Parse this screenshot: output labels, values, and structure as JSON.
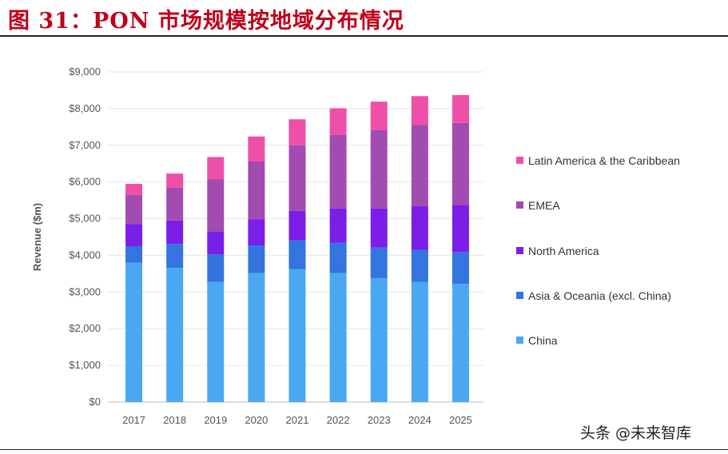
{
  "title": "图 31：PON 市场规模按地域分布情况",
  "watermark": "头条 @未来智库",
  "chart_data": {
    "type": "bar",
    "stacked": true,
    "title": "",
    "xlabel": "",
    "ylabel": "Revenue ($m)",
    "ylim": [
      0,
      9000
    ],
    "yticks": [
      0,
      1000,
      2000,
      3000,
      4000,
      5000,
      6000,
      7000,
      8000,
      9000
    ],
    "ytick_labels": [
      "$0",
      "$1,000",
      "$2,000",
      "$3,000",
      "$4,000",
      "$5,000",
      "$6,000",
      "$7,000",
      "$8,000",
      "$9,000"
    ],
    "grid": true,
    "legend_placement": "right",
    "categories": [
      "2017",
      "2018",
      "2019",
      "2020",
      "2021",
      "2022",
      "2023",
      "2024",
      "2025"
    ],
    "series": [
      {
        "name": "China",
        "color": "#4aa8f2",
        "values": [
          3800,
          3660,
          3280,
          3520,
          3620,
          3520,
          3380,
          3280,
          3220
        ]
      },
      {
        "name": "Asia & Oceania (excl. China)",
        "color": "#3474de",
        "values": [
          450,
          650,
          750,
          750,
          790,
          820,
          830,
          870,
          870
        ]
      },
      {
        "name": "North America",
        "color": "#7a1ee8",
        "values": [
          600,
          640,
          620,
          710,
          800,
          940,
          1070,
          1190,
          1280
        ]
      },
      {
        "name": "EMEA",
        "color": "#a24bb0",
        "values": [
          800,
          890,
          1420,
          1580,
          1790,
          2000,
          2130,
          2210,
          2240
        ]
      },
      {
        "name": "Latin America & the Caribbean",
        "color": "#ee4fa8",
        "values": [
          300,
          390,
          610,
          680,
          710,
          730,
          780,
          790,
          760
        ]
      }
    ]
  }
}
